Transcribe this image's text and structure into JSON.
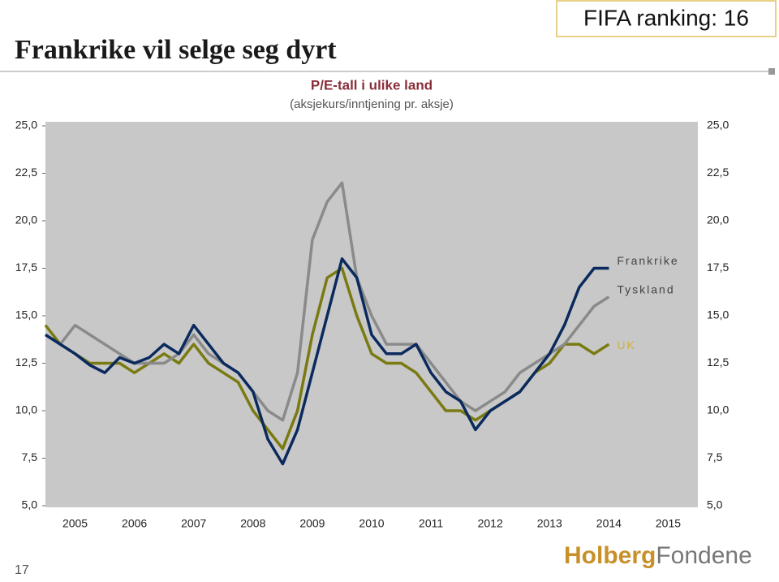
{
  "slide": {
    "title": "Frankrike vil selge seg dyrt",
    "badge": "FIFA ranking: 16",
    "page_number": "17",
    "logo_part1": "Holberg",
    "logo_part2": "Fondene"
  },
  "chart_data": {
    "type": "line",
    "title": "P/E-tall i ulike land",
    "subtitle": "(aksjekurs/inntjening pr. aksje)",
    "x": [
      2005,
      2005.25,
      2005.5,
      2005.75,
      2006,
      2006.25,
      2006.5,
      2006.75,
      2007,
      2007.25,
      2007.5,
      2007.75,
      2008,
      2008.25,
      2008.5,
      2008.75,
      2009,
      2009.25,
      2009.5,
      2009.75,
      2010,
      2010.25,
      2010.5,
      2010.75,
      2011,
      2011.25,
      2011.5,
      2011.75,
      2012,
      2012.25,
      2012.5,
      2012.75,
      2013,
      2013.25,
      2013.5,
      2013.75,
      2014,
      2014.25,
      2014.5
    ],
    "series": [
      {
        "name": "UK",
        "color": "#7a7a12",
        "values": [
          14.5,
          13.5,
          13,
          12.5,
          12.5,
          12.5,
          12,
          12.5,
          13,
          12.5,
          13.5,
          12.5,
          12,
          11.5,
          10,
          9,
          8,
          10,
          14,
          17,
          17.5,
          15,
          13,
          12.5,
          12.5,
          12,
          11,
          10,
          10,
          9.5,
          10,
          10.5,
          11,
          12,
          12.5,
          13.5,
          13.5,
          13,
          13.5
        ]
      },
      {
        "name": "Tyskland",
        "color": "#8a8a8a",
        "values": [
          14,
          13.5,
          14.5,
          14,
          13.5,
          13,
          12.5,
          12.5,
          12.5,
          13,
          14,
          13,
          12.5,
          12,
          11,
          10,
          9.5,
          12,
          19,
          21,
          22,
          17,
          15,
          13.5,
          13.5,
          13.5,
          12.5,
          11.5,
          10.5,
          10,
          10.5,
          11,
          12,
          12.5,
          13,
          13.5,
          14.5,
          15.5,
          16
        ]
      },
      {
        "name": "Frankrike",
        "color": "#0a2a5e",
        "values": [
          14,
          13.5,
          13,
          12.4,
          12,
          12.8,
          12.5,
          12.8,
          13.5,
          13,
          14.5,
          13.5,
          12.5,
          12,
          11,
          8.5,
          7.2,
          9,
          12,
          15,
          18,
          17,
          14,
          13,
          13,
          13.5,
          12,
          11,
          10.5,
          9,
          10,
          10.5,
          11,
          12,
          13,
          14.5,
          16.5,
          17.5,
          17.5
        ]
      }
    ],
    "xlim": [
      2005,
      2016
    ],
    "xticks": [
      {
        "value": 2005.5,
        "label": "2005"
      },
      {
        "value": 2006.5,
        "label": "2006"
      },
      {
        "value": 2007.5,
        "label": "2007"
      },
      {
        "value": 2008.5,
        "label": "2008"
      },
      {
        "value": 2009.5,
        "label": "2009"
      },
      {
        "value": 2010.5,
        "label": "2010"
      },
      {
        "value": 2011.5,
        "label": "2011"
      },
      {
        "value": 2012.5,
        "label": "2012"
      },
      {
        "value": 2013.5,
        "label": "2013"
      },
      {
        "value": 2014.5,
        "label": "2014"
      },
      {
        "value": 2015.5,
        "label": "2015"
      }
    ],
    "ylim": [
      5,
      25
    ],
    "yticks": [
      {
        "value": 5,
        "label": "5,0"
      },
      {
        "value": 7.5,
        "label": "7,5"
      },
      {
        "value": 10,
        "label": "10,0"
      },
      {
        "value": 12.5,
        "label": "12,5"
      },
      {
        "value": 15,
        "label": "15,0"
      },
      {
        "value": 17.5,
        "label": "17,5"
      },
      {
        "value": 20,
        "label": "20,0"
      },
      {
        "value": 22.5,
        "label": "22,5"
      },
      {
        "value": 25,
        "label": "25,0"
      }
    ]
  }
}
